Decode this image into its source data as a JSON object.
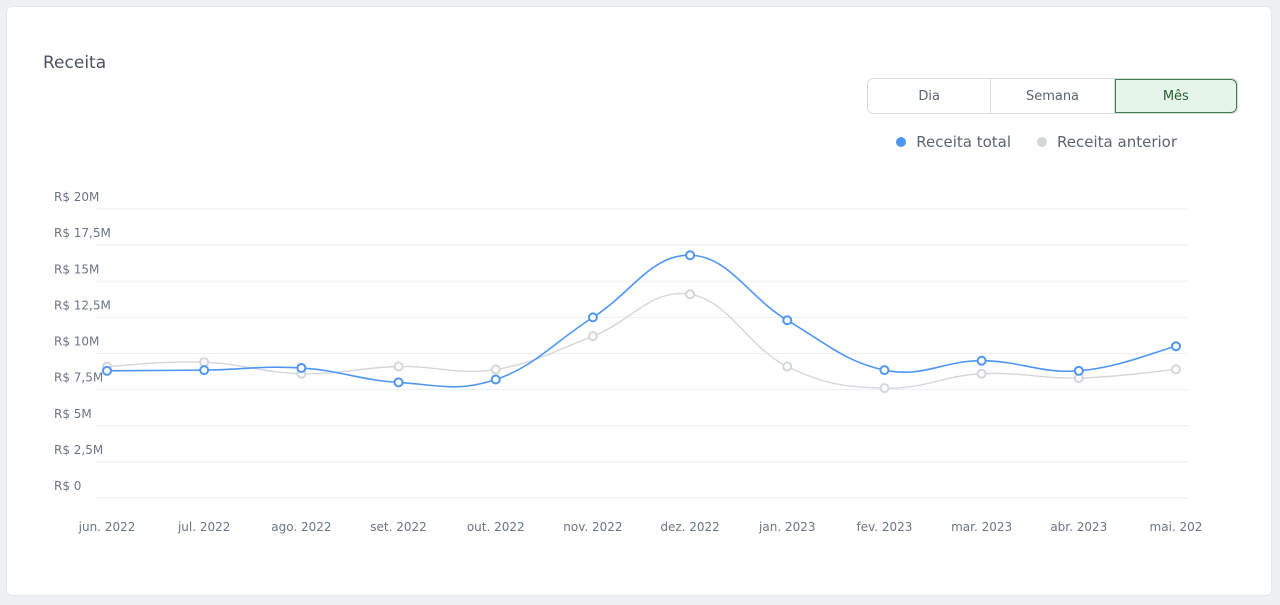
{
  "card": {
    "title": "Receita"
  },
  "period_selector": {
    "options": [
      {
        "label": "Dia",
        "active": false
      },
      {
        "label": "Semana",
        "active": false
      },
      {
        "label": "Mês",
        "active": true
      }
    ]
  },
  "colors": {
    "total": "#4f96f0",
    "previous": "#d3d6db",
    "grid": "#eceef2",
    "active_bg": "#e6f5e9",
    "active_border": "#3f7d47"
  },
  "chart_data": {
    "type": "line",
    "title": "Receita",
    "xlabel": "",
    "ylabel": "",
    "ylim": [
      0,
      20
    ],
    "yticks": [
      {
        "value": 0,
        "label": "R$ 0"
      },
      {
        "value": 2.5,
        "label": "R$ 2,5M"
      },
      {
        "value": 5,
        "label": "R$ 5M"
      },
      {
        "value": 7.5,
        "label": "R$ 7,5M"
      },
      {
        "value": 10,
        "label": "R$ 10M"
      },
      {
        "value": 12.5,
        "label": "R$ 12,5M"
      },
      {
        "value": 15,
        "label": "R$ 15M"
      },
      {
        "value": 17.5,
        "label": "R$ 17,5M"
      },
      {
        "value": 20,
        "label": "R$ 20M"
      }
    ],
    "categories": [
      "jun. 2022",
      "jul. 2022",
      "ago. 2022",
      "set. 2022",
      "out. 2022",
      "nov. 2022",
      "dez. 2022",
      "jan. 2023",
      "fev. 2023",
      "mar. 2023",
      "abr. 2023",
      "mai. 202"
    ],
    "series": [
      {
        "name": "Receita total",
        "color": "#4f96f0",
        "values": [
          8.8,
          8.85,
          9.0,
          8.0,
          8.2,
          12.5,
          16.8,
          12.3,
          8.85,
          9.5,
          8.8,
          10.5
        ]
      },
      {
        "name": "Receita anterior",
        "color": "#d3d6db",
        "values": [
          9.1,
          9.4,
          8.6,
          9.1,
          8.9,
          11.2,
          14.1,
          9.1,
          7.6,
          8.6,
          8.3,
          8.9
        ]
      }
    ],
    "grid": true,
    "legend": "top-right"
  }
}
